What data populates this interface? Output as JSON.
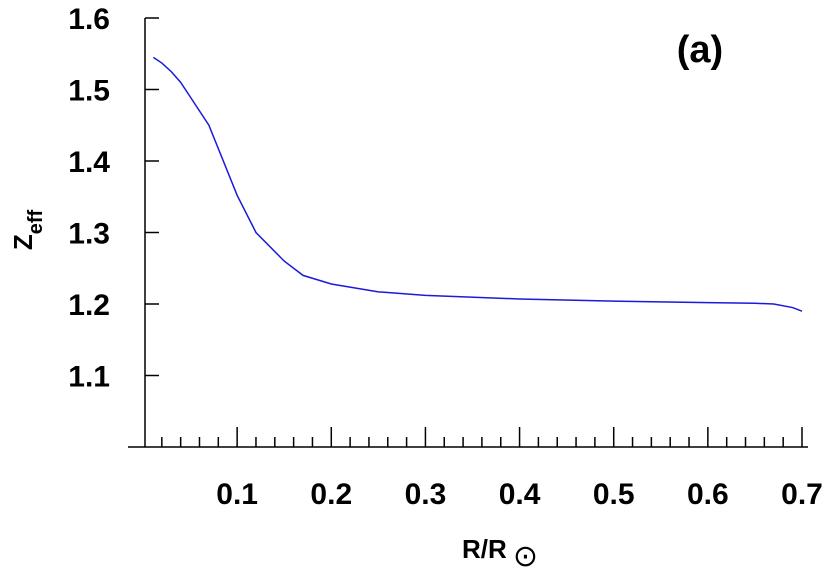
{
  "chart_data": {
    "type": "line",
    "annotation": "(a)",
    "xlabel": "R/R",
    "xlabel_subscript": "⊙",
    "ylabel": "Z",
    "ylabel_subscript": "eff",
    "x": [
      0.011,
      0.02,
      0.03,
      0.04,
      0.05,
      0.07,
      0.1,
      0.12,
      0.15,
      0.17,
      0.19,
      0.2,
      0.25,
      0.3,
      0.4,
      0.5,
      0.6,
      0.65,
      0.67,
      0.69,
      0.7
    ],
    "series": [
      {
        "name": "Zeff",
        "color": "#1a1adc",
        "values": [
          1.545,
          1.537,
          1.525,
          1.51,
          1.49,
          1.45,
          1.352,
          1.3,
          1.26,
          1.24,
          1.232,
          1.228,
          1.217,
          1.212,
          1.207,
          1.204,
          1.202,
          1.201,
          1.2,
          1.195,
          1.19
        ]
      }
    ],
    "xlim": [
      0,
      0.7
    ],
    "xticks": [
      0.1,
      0.2,
      0.3,
      0.4,
      0.5,
      0.6,
      0.7
    ],
    "xminorticks": [
      0.02,
      0.04,
      0.06,
      0.08,
      0.12,
      0.14,
      0.16,
      0.18,
      0.22,
      0.24,
      0.26,
      0.28,
      0.32,
      0.34,
      0.36,
      0.38,
      0.42,
      0.44,
      0.46,
      0.48,
      0.52,
      0.54,
      0.56,
      0.58,
      0.62,
      0.64,
      0.66,
      0.68
    ],
    "ylim": [
      1.0,
      1.6
    ],
    "yticks": [
      1.1,
      1.2,
      1.3,
      1.4,
      1.5,
      1.6
    ]
  }
}
